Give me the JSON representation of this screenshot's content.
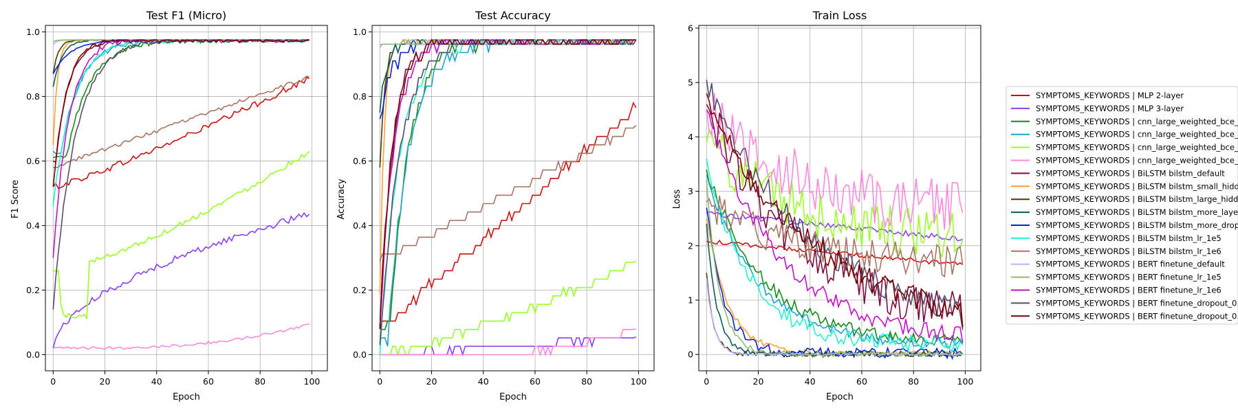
{
  "chart_data": [
    {
      "type": "line",
      "title": "Test F1 (Micro)",
      "xlabel": "Epoch",
      "ylabel": "F1 Score",
      "xlim": [
        -3,
        106
      ],
      "ylim": [
        -0.05,
        1.02
      ],
      "xticks": [
        0,
        20,
        40,
        60,
        80,
        100
      ],
      "yticks": [
        0.0,
        0.2,
        0.4,
        0.6,
        0.8,
        1.0
      ],
      "xtick_labels": [
        "0",
        "20",
        "40",
        "60",
        "80",
        "100"
      ],
      "ytick_labels": [
        "0.0",
        "0.2",
        "0.4",
        "0.6",
        "0.8",
        "1.0"
      ],
      "grid": true,
      "series_values": {
        "mlp2": {
          "start": 0.52,
          "end": 0.855,
          "shape": "linear",
          "k": 1.15,
          "noise": 0.01,
          "step": 0
        },
        "mlp3": {
          "start": 0.02,
          "end": 0.435,
          "shape": "linear",
          "k": 0.55,
          "noise": 0.01,
          "step": 0
        },
        "cnn1": {
          "start": 0.61,
          "end": 0.975,
          "shape": "sat",
          "k": 0.11,
          "noise": 0.008,
          "step": 0,
          "delay": 5
        },
        "cnn2": {
          "start": 0.63,
          "end": 0.975,
          "shape": "sat",
          "k": 0.13,
          "noise": 0.008,
          "step": 0,
          "delay": 3
        },
        "cnn3": {
          "start": 0.26,
          "end": 0.63,
          "shape": "linear",
          "k": 1.35,
          "noise": 0.008,
          "step": 0,
          "dip": [
            0.12,
            14
          ]
        },
        "cnn4": {
          "start": 0.02,
          "end": 0.095,
          "shape": "linear",
          "k": 3.0,
          "noise": 0.004,
          "step": 0
        },
        "bilstm_default": {
          "start": 0.6,
          "end": 0.975,
          "shape": "sat",
          "k": 0.2,
          "noise": 0.005,
          "step": 0,
          "delay": 1
        },
        "bilstm_small": {
          "start": 0.65,
          "end": 0.975,
          "shape": "sat",
          "k": 0.6,
          "noise": 0.003,
          "step": 0
        },
        "bilstm_large": {
          "start": 0.87,
          "end": 0.975,
          "shape": "sat",
          "k": 0.5,
          "noise": 0.004,
          "step": 0
        },
        "bilstm_layers": {
          "start": 0.83,
          "end": 0.975,
          "shape": "sat",
          "k": 0.3,
          "noise": 0.004,
          "step": 0
        },
        "bilstm_dropout": {
          "start": 0.87,
          "end": 0.975,
          "shape": "sat",
          "k": 0.15,
          "noise": 0.004,
          "step": 0
        },
        "bilstm_lr1e5": {
          "start": 0.46,
          "end": 0.975,
          "shape": "sat",
          "k": 0.13,
          "noise": 0.008,
          "step": 0
        },
        "bilstm_lr1e6": {
          "start": 0.58,
          "end": 0.86,
          "shape": "linear",
          "k": 1.0,
          "noise": 0.006,
          "step": 0
        },
        "bert_default": {
          "start": 0.96,
          "end": 0.975,
          "shape": "sat",
          "k": 0.8,
          "noise": 0.001,
          "step": 0
        },
        "bert_lr1e5": {
          "start": 0.97,
          "end": 0.975,
          "shape": "sat",
          "k": 0.8,
          "noise": 0.001,
          "step": 0
        },
        "bert_lr1e6": {
          "start": 0.3,
          "end": 0.975,
          "shape": "sat",
          "k": 0.17,
          "noise": 0.01,
          "step": 0
        },
        "bert_dropout_a": {
          "start": 0.14,
          "end": 0.975,
          "shape": "sat",
          "k": 0.12,
          "noise": 0.008,
          "step": 0
        },
        "bert_dropout_b": {
          "start": 0.52,
          "end": 0.975,
          "shape": "sat",
          "k": 0.2,
          "noise": 0.008,
          "step": 0
        }
      }
    },
    {
      "type": "line",
      "title": "Test Accuracy",
      "xlabel": "Epoch",
      "ylabel": "Accuracy",
      "xlim": [
        -3,
        106
      ],
      "ylim": [
        -0.05,
        1.02
      ],
      "xticks": [
        0,
        20,
        40,
        60,
        80,
        100
      ],
      "yticks": [
        0.0,
        0.2,
        0.4,
        0.6,
        0.8,
        1.0
      ],
      "xtick_labels": [
        "0",
        "20",
        "40",
        "60",
        "80",
        "100"
      ],
      "ytick_labels": [
        "0.0",
        "0.2",
        "0.4",
        "0.6",
        "0.8",
        "1.0"
      ],
      "grid": true,
      "series_values": {
        "mlp2": {
          "start": 0.08,
          "end": 0.765,
          "shape": "linear",
          "k": 1.0,
          "noise": 0.012,
          "step": 0.026
        },
        "mlp3": {
          "start": 0.0,
          "end": 0.055,
          "shape": "linear",
          "k": 1.0,
          "noise": 0.01,
          "step": 0.026
        },
        "cnn1": {
          "start": 0.08,
          "end": 0.975,
          "shape": "sat",
          "k": 0.14,
          "noise": 0.02,
          "step": 0.026,
          "delay": 4
        },
        "cnn2": {
          "start": 0.05,
          "end": 0.975,
          "shape": "sat",
          "k": 0.12,
          "noise": 0.02,
          "step": 0.026,
          "delay": 3
        },
        "cnn3": {
          "start": 0.0,
          "end": 0.29,
          "shape": "linear",
          "k": 1.3,
          "noise": 0.01,
          "step": 0.026,
          "delay": 10
        },
        "cnn4": {
          "start": 0.0,
          "end": 0.08,
          "shape": "linear",
          "k": 4.0,
          "noise": 0.004,
          "step": 0.026,
          "delay": 30
        },
        "bilstm_default": {
          "start": 0.08,
          "end": 0.975,
          "shape": "sat",
          "k": 0.2,
          "noise": 0.02,
          "step": 0.026
        },
        "bilstm_small": {
          "start": 0.19,
          "end": 0.975,
          "shape": "sat",
          "k": 0.6,
          "noise": 0.01,
          "step": 0.026
        },
        "bilstm_large": {
          "start": 0.58,
          "end": 0.975,
          "shape": "sat",
          "k": 0.5,
          "noise": 0.01,
          "step": 0.026
        },
        "bilstm_layers": {
          "start": 0.75,
          "end": 0.975,
          "shape": "sat",
          "k": 0.35,
          "noise": 0.01,
          "step": 0.026
        },
        "bilstm_dropout": {
          "start": 0.73,
          "end": 0.975,
          "shape": "sat",
          "k": 0.2,
          "noise": 0.02,
          "step": 0.026
        },
        "bilstm_lr1e5": {
          "start": 0.0,
          "end": 0.975,
          "shape": "sat",
          "k": 0.13,
          "noise": 0.02,
          "step": 0.026
        },
        "bilstm_lr1e6": {
          "start": 0.29,
          "end": 0.71,
          "shape": "linear",
          "k": 1.0,
          "noise": 0.006,
          "step": 0.026
        },
        "bert_default": {
          "start": 0.95,
          "end": 0.975,
          "shape": "sat",
          "k": 0.8,
          "noise": 0.002,
          "step": 0.026
        },
        "bert_lr1e5": {
          "start": 0.96,
          "end": 0.975,
          "shape": "sat",
          "k": 0.8,
          "noise": 0.002,
          "step": 0.026
        },
        "bert_lr1e6": {
          "start": 0.08,
          "end": 0.975,
          "shape": "sat",
          "k": 0.18,
          "noise": 0.02,
          "step": 0.026
        },
        "bert_dropout_a": {
          "start": 0.03,
          "end": 0.975,
          "shape": "sat",
          "k": 0.13,
          "noise": 0.02,
          "step": 0.026
        },
        "bert_dropout_b": {
          "start": 0.08,
          "end": 0.975,
          "shape": "sat",
          "k": 0.2,
          "noise": 0.02,
          "step": 0.026
        }
      }
    },
    {
      "type": "line",
      "title": "Train Loss",
      "xlabel": "Epoch",
      "ylabel": "Loss",
      "xlim": [
        -3,
        106
      ],
      "ylim": [
        -0.3,
        6.05
      ],
      "xticks": [
        0,
        20,
        40,
        60,
        80,
        100
      ],
      "yticks": [
        0,
        1,
        2,
        3,
        4,
        5,
        6
      ],
      "xtick_labels": [
        "0",
        "20",
        "40",
        "60",
        "80",
        "100"
      ],
      "ytick_labels": [
        "0",
        "1",
        "2",
        "3",
        "4",
        "5",
        "6"
      ],
      "grid": true,
      "series_values": {
        "mlp2": {
          "start": 2.08,
          "end": 1.65,
          "shape": "linear",
          "k": 1.0,
          "noise": 0.04,
          "step": 0
        },
        "mlp3": {
          "start": 2.6,
          "end": 2.12,
          "shape": "linear",
          "k": 1.0,
          "noise": 0.05,
          "step": 0
        },
        "cnn1": {
          "start": 3.4,
          "end": 0.2,
          "shape": "decay",
          "k": 0.045,
          "noise": 0.12,
          "step": 0
        },
        "cnn2": {
          "start": 3.3,
          "end": 0.18,
          "shape": "decay",
          "k": 0.05,
          "noise": 0.1,
          "step": 0
        },
        "cnn3": {
          "start": 3.9,
          "end": 2.1,
          "shape": "decay",
          "k": 0.03,
          "noise": 0.45,
          "step": 0
        },
        "cnn4": {
          "start": 4.5,
          "end": 2.6,
          "shape": "decay",
          "k": 0.03,
          "noise": 0.5,
          "step": 0
        },
        "bilstm_default": {
          "start": 4.6,
          "end": 0.5,
          "shape": "decay",
          "k": 0.028,
          "noise": 0.4,
          "step": 0
        },
        "bilstm_small": {
          "start": 2.5,
          "end": 0.02,
          "shape": "decay",
          "k": 0.12,
          "noise": 0.05,
          "step": 0
        },
        "bilstm_large": {
          "start": 1.5,
          "end": 0.01,
          "shape": "decay",
          "k": 0.35,
          "noise": 0.05,
          "step": 0
        },
        "bilstm_layers": {
          "start": 2.4,
          "end": 0.01,
          "shape": "decay",
          "k": 0.25,
          "noise": 0.05,
          "step": 0
        },
        "bilstm_dropout": {
          "start": 2.7,
          "end": 0.02,
          "shape": "decay",
          "k": 0.15,
          "noise": 0.1,
          "step": 0
        },
        "bilstm_lr1e5": {
          "start": 3.6,
          "end": 0.18,
          "shape": "decay",
          "k": 0.06,
          "noise": 0.15,
          "step": 0
        },
        "bilstm_lr1e6": {
          "start": 2.8,
          "end": 1.65,
          "shape": "decay",
          "k": 0.03,
          "noise": 0.3,
          "step": 0
        },
        "bert_default": {
          "start": 1.4,
          "end": 0.005,
          "shape": "decay",
          "k": 0.35,
          "noise": 0.02,
          "step": 0
        },
        "bert_lr1e5": {
          "start": 3.2,
          "end": 0.01,
          "shape": "decay",
          "k": 0.2,
          "noise": 0.05,
          "step": 0
        },
        "bert_lr1e6": {
          "start": 4.5,
          "end": 0.22,
          "shape": "decay",
          "k": 0.035,
          "noise": 0.15,
          "step": 0
        },
        "bert_dropout_a": {
          "start": 5.05,
          "end": 0.45,
          "shape": "decay",
          "k": 0.025,
          "noise": 0.25,
          "step": 0
        },
        "bert_dropout_b": {
          "start": 4.8,
          "end": 0.5,
          "shape": "decay",
          "k": 0.025,
          "noise": 0.25,
          "step": 0
        }
      }
    }
  ],
  "legend": {
    "placement": "right",
    "entries": [
      {
        "id": "mlp2",
        "label": "SYMPTOMS_KEYWORDS | MLP 2-layer",
        "color": "#cc1010"
      },
      {
        "id": "mlp3",
        "label": "SYMPTOMS_KEYWORDS | MLP 3-layer",
        "color": "#8a3ffc"
      },
      {
        "id": "cnn1",
        "label": "SYMPTOMS_KEYWORDS | cnn_large_weighted_bce_",
        "color": "#168a16"
      },
      {
        "id": "cnn2",
        "label": "SYMPTOMS_KEYWORDS | cnn_large_weighted_bce_",
        "color": "#1ba3c6"
      },
      {
        "id": "cnn3",
        "label": "SYMPTOMS_KEYWORDS | cnn_large_weighted_bce_",
        "color": "#99ff22"
      },
      {
        "id": "cnn4",
        "label": "SYMPTOMS_KEYWORDS | cnn_large_weighted_bce_",
        "color": "#ff88dd"
      },
      {
        "id": "bilstm_default",
        "label": "SYMPTOMS_KEYWORDS | BiLSTM bilstm_default",
        "color": "#7d0c3a"
      },
      {
        "id": "bilstm_small",
        "label": "SYMPTOMS_KEYWORDS | BiLSTM bilstm_small_hidd",
        "color": "#ffa030"
      },
      {
        "id": "bilstm_large",
        "label": "SYMPTOMS_KEYWORDS | BiLSTM bilstm_large_hidd",
        "color": "#4a3a00"
      },
      {
        "id": "bilstm_layers",
        "label": "SYMPTOMS_KEYWORDS | BiLSTM bilstm_more_laye",
        "color": "#0b5a5a"
      },
      {
        "id": "bilstm_dropout",
        "label": "SYMPTOMS_KEYWORDS | BiLSTM bilstm_more_drop",
        "color": "#0a1ed6"
      },
      {
        "id": "bilstm_lr1e5",
        "label": "SYMPTOMS_KEYWORDS | BiLSTM bilstm_lr_1e5",
        "color": "#22f2d0"
      },
      {
        "id": "bilstm_lr1e6",
        "label": "SYMPTOMS_KEYWORDS | BiLSTM bilstm_lr_1e6",
        "color": "#a87563"
      },
      {
        "id": "bert_default",
        "label": "SYMPTOMS_KEYWORDS | BERT finetune_default",
        "color": "#b4b4ff"
      },
      {
        "id": "bert_lr1e5",
        "label": "SYMPTOMS_KEYWORDS | BERT finetune_lr_1e5",
        "color": "#8fb870"
      },
      {
        "id": "bert_lr1e6",
        "label": "SYMPTOMS_KEYWORDS | BERT finetune_lr_1e6",
        "color": "#c011c8"
      },
      {
        "id": "bert_dropout_a",
        "label": "SYMPTOMS_KEYWORDS | BERT finetune_dropout_0.",
        "color": "#5a4a6e"
      },
      {
        "id": "bert_dropout_b",
        "label": "SYMPTOMS_KEYWORDS | BERT finetune_dropout_0.",
        "color": "#7a0000"
      }
    ]
  }
}
